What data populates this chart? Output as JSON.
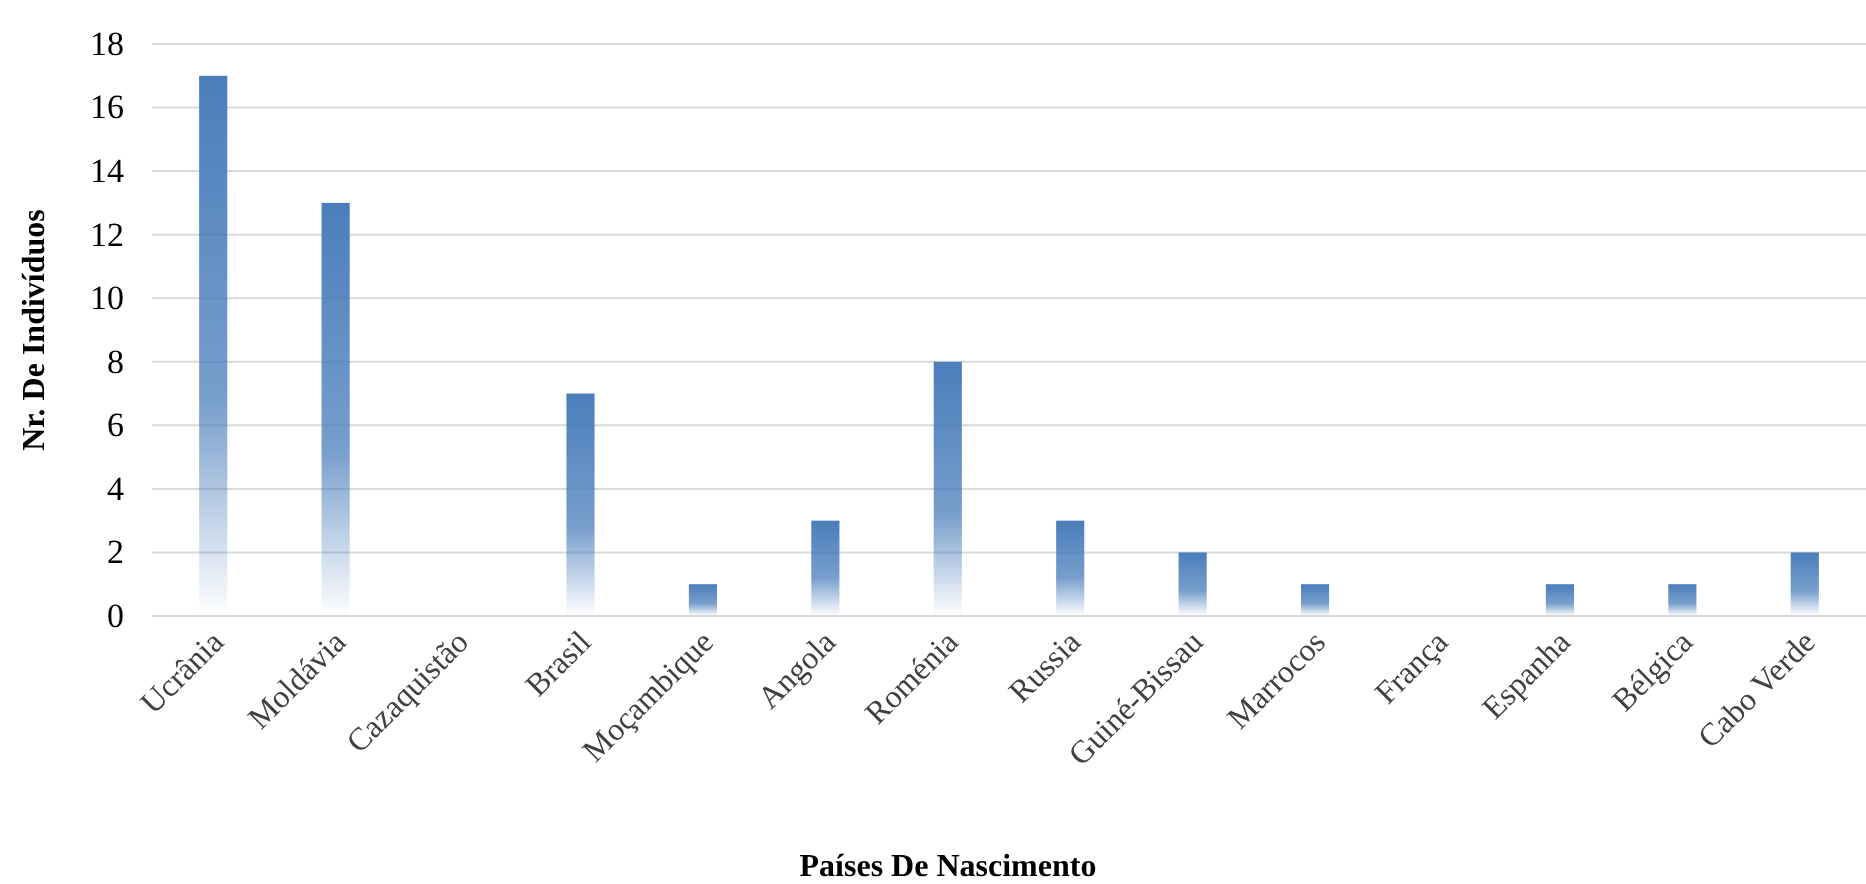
{
  "chart_data": {
    "type": "bar",
    "xlabel": "Países De Nascimento",
    "ylabel": "Nr. De Indivíduos",
    "categories": [
      "Ucrânia",
      "Moldávia",
      "Cazaquistão",
      "Brasil",
      "Moçambique",
      "Angola",
      "Roménia",
      "Russia",
      "Guiné-Bissau",
      "Marrocos",
      "França",
      "Espanha",
      "Bélgica",
      "Cabo Verde"
    ],
    "values": [
      17,
      13,
      0,
      7,
      1,
      3,
      8,
      3,
      2,
      1,
      0,
      1,
      1,
      2
    ],
    "color": "#4a7ebb",
    "ylim": [
      0,
      18
    ],
    "yticks": [
      0,
      2,
      4,
      6,
      8,
      10,
      12,
      14,
      16,
      18
    ],
    "grid": "y"
  }
}
